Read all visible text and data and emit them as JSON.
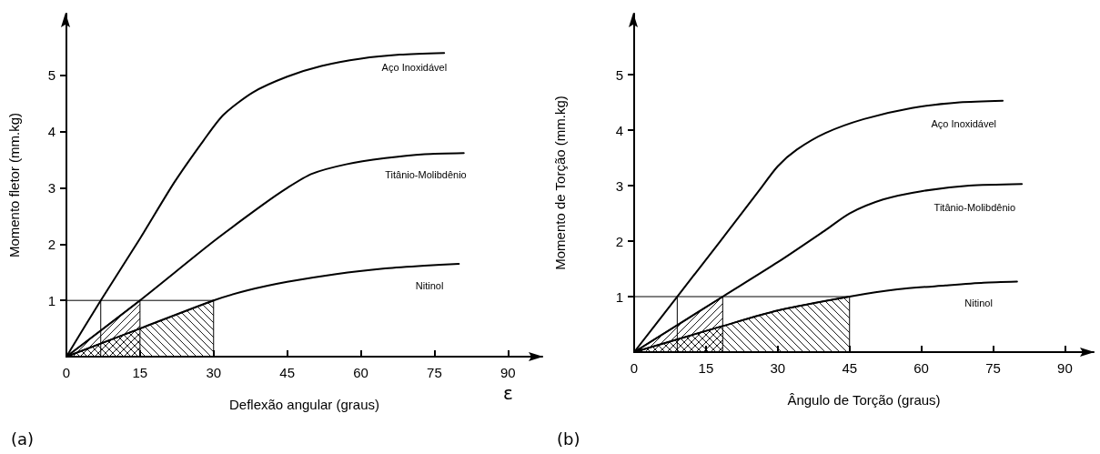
{
  "chart_data": [
    {
      "type": "line",
      "xlabel": "Deflexão angular (graus)",
      "ylabel": "Momento fletor (mm.kg)",
      "annotations": [
        "(a)",
        "ε"
      ],
      "xlim": [
        0,
        97
      ],
      "ylim": [
        0,
        6.1
      ],
      "xticks": [
        0,
        15,
        30,
        45,
        60,
        75,
        90
      ],
      "yticks": [
        1,
        2,
        3,
        4,
        5
      ],
      "grid": false,
      "legend": false,
      "marker": "none",
      "series": [
        {
          "name": "Aço Inoxidável",
          "color": "#000000",
          "x": [
            0,
            7,
            15,
            22,
            28,
            32,
            38,
            45,
            52,
            60,
            68,
            77
          ],
          "values": [
            0,
            1,
            2.1,
            3.1,
            3.85,
            4.3,
            4.7,
            4.98,
            5.17,
            5.3,
            5.37,
            5.4
          ]
        },
        {
          "name": "Titânio-Molibdênio",
          "color": "#000000",
          "x": [
            0,
            15,
            30,
            40,
            45,
            50,
            57,
            65,
            73,
            81
          ],
          "values": [
            0,
            1,
            2.05,
            2.7,
            3,
            3.25,
            3.42,
            3.53,
            3.6,
            3.62
          ]
        },
        {
          "name": "Nitinol",
          "color": "#000000",
          "x": [
            0,
            15,
            30,
            37,
            45,
            55,
            65,
            73,
            80
          ],
          "values": [
            0,
            0.5,
            1,
            1.18,
            1.33,
            1.47,
            1.57,
            1.62,
            1.65
          ]
        },
        {
          "type": "area",
          "color": "#000000",
          "x": [
            0,
            15
          ],
          "values": [
            0,
            1
          ]
        },
        {
          "type": "area",
          "color": "#000000",
          "x": [
            0,
            15,
            30
          ],
          "values": [
            0,
            0.5,
            1
          ]
        },
        {
          "color": "#000000",
          "x": [
            0,
            30
          ],
          "values": [
            1,
            1
          ]
        },
        {
          "color": "#000000",
          "x": [
            7,
            7
          ],
          "values": [
            0,
            1
          ]
        },
        {
          "color": "#000000",
          "x": [
            15,
            15
          ],
          "values": [
            0,
            1
          ]
        },
        {
          "color": "#000000",
          "x": [
            30,
            30
          ],
          "values": [
            0,
            1
          ]
        }
      ]
    },
    {
      "type": "line",
      "xlabel": "Ângulo de Torção (graus)",
      "ylabel": "Momento de Torção (mm.kg)",
      "annotations": [
        "(b)"
      ],
      "xlim": [
        0,
        96
      ],
      "ylim": [
        0,
        6.1
      ],
      "xticks": [
        0,
        15,
        30,
        45,
        60,
        75,
        90
      ],
      "yticks": [
        1,
        2,
        3,
        4,
        5
      ],
      "grid": false,
      "legend": false,
      "marker": "none",
      "series": [
        {
          "name": "Aço Inoxidável",
          "color": "#000000",
          "x": [
            0,
            9,
            18,
            26,
            30,
            34,
            40,
            48,
            58,
            68,
            77
          ],
          "values": [
            0,
            1,
            2,
            2.9,
            3.35,
            3.65,
            3.95,
            4.2,
            4.4,
            4.5,
            4.53
          ]
        },
        {
          "name": "Titânio-Molibdênio",
          "color": "#000000",
          "x": [
            0,
            18.5,
            30,
            40,
            45,
            52,
            60,
            70,
            81
          ],
          "values": [
            0,
            1,
            1.62,
            2.2,
            2.5,
            2.75,
            2.9,
            3,
            3.03
          ]
        },
        {
          "name": "Nitinol",
          "color": "#000000",
          "x": [
            0,
            18.5,
            30,
            45,
            55,
            65,
            73,
            80
          ],
          "values": [
            0,
            0.47,
            0.75,
            1,
            1.13,
            1.2,
            1.25,
            1.27
          ]
        },
        {
          "type": "area",
          "color": "#000000",
          "x": [
            0,
            18.5
          ],
          "values": [
            0,
            1
          ]
        },
        {
          "type": "area",
          "color": "#000000",
          "x": [
            0,
            18.5,
            30,
            45
          ],
          "values": [
            0,
            0.47,
            0.75,
            1
          ]
        },
        {
          "color": "#000000",
          "x": [
            0,
            45
          ],
          "values": [
            1,
            1
          ]
        },
        {
          "color": "#000000",
          "x": [
            9,
            9
          ],
          "values": [
            0,
            1
          ]
        },
        {
          "color": "#000000",
          "x": [
            18.5,
            18.5
          ],
          "values": [
            0,
            1
          ]
        },
        {
          "color": "#000000",
          "x": [
            45,
            45
          ],
          "values": [
            0,
            1
          ]
        }
      ]
    }
  ]
}
